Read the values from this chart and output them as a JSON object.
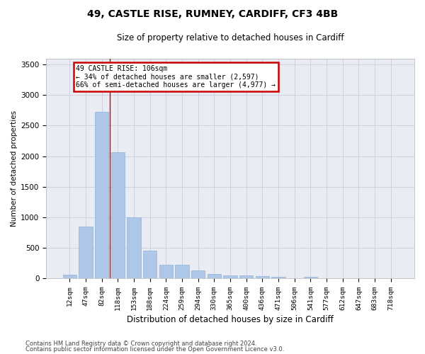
{
  "title": "49, CASTLE RISE, RUMNEY, CARDIFF, CF3 4BB",
  "subtitle": "Size of property relative to detached houses in Cardiff",
  "xlabel": "Distribution of detached houses by size in Cardiff",
  "ylabel": "Number of detached properties",
  "categories": [
    "12sqm",
    "47sqm",
    "82sqm",
    "118sqm",
    "153sqm",
    "188sqm",
    "224sqm",
    "259sqm",
    "294sqm",
    "330sqm",
    "365sqm",
    "400sqm",
    "436sqm",
    "471sqm",
    "506sqm",
    "541sqm",
    "577sqm",
    "612sqm",
    "647sqm",
    "683sqm",
    "718sqm"
  ],
  "values": [
    65,
    850,
    2720,
    2060,
    1000,
    455,
    225,
    220,
    135,
    70,
    55,
    55,
    35,
    25,
    0,
    25,
    0,
    0,
    0,
    0,
    0
  ],
  "bar_color": "#aec6e8",
  "bar_edge_color": "#8ab4d8",
  "grid_color": "#d0d0e0",
  "background_color": "#eaecf4",
  "annotation_box_line1": "49 CASTLE RISE: 106sqm",
  "annotation_box_line2": "← 34% of detached houses are smaller (2,597)",
  "annotation_box_line3": "66% of semi-detached houses are larger (4,977) →",
  "annotation_box_color": "#cc0000",
  "property_line_x": 2.5,
  "ylim": [
    0,
    3600
  ],
  "yticks": [
    0,
    500,
    1000,
    1500,
    2000,
    2500,
    3000,
    3500
  ],
  "footer_line1": "Contains HM Land Registry data © Crown copyright and database right 2024.",
  "footer_line2": "Contains public sector information licensed under the Open Government Licence v3.0."
}
